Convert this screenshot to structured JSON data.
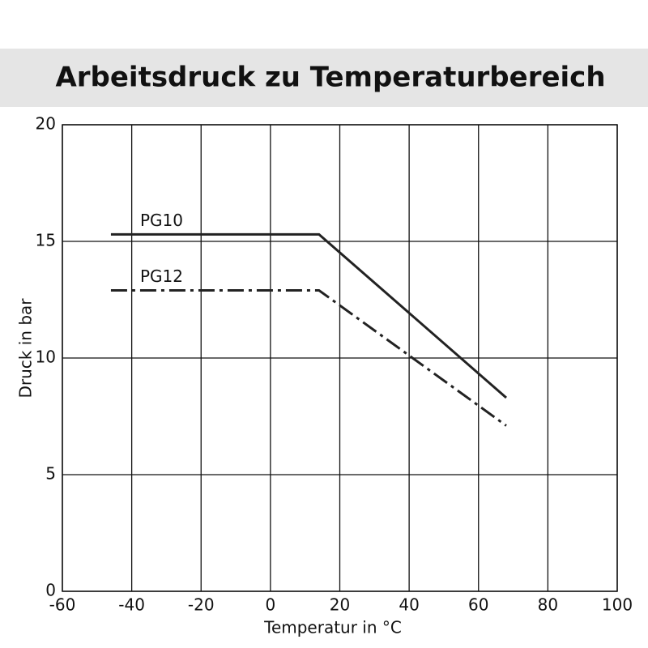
{
  "chart_data": {
    "type": "line",
    "title": "Arbeitsdruck zu Temperaturbereich",
    "x_label": "Temperatur in °C",
    "y_label": "Druck in bar",
    "x": [
      -46,
      14,
      68
    ],
    "series": [
      {
        "name": "PG10",
        "color": "#222222",
        "dash": "solid",
        "values": [
          15.3,
          15.3,
          8.3
        ]
      },
      {
        "name": "PG12",
        "color": "#222222",
        "dash": "dashdot",
        "values": [
          12.9,
          12.9,
          7.1
        ]
      }
    ],
    "xlim": [
      -60,
      100
    ],
    "xticks": [
      -60,
      -40,
      -20,
      0,
      20,
      40,
      60,
      80,
      100
    ],
    "ylim": [
      0,
      20
    ],
    "yticks": [
      0,
      5,
      10,
      15,
      20
    ],
    "grid": true
  }
}
